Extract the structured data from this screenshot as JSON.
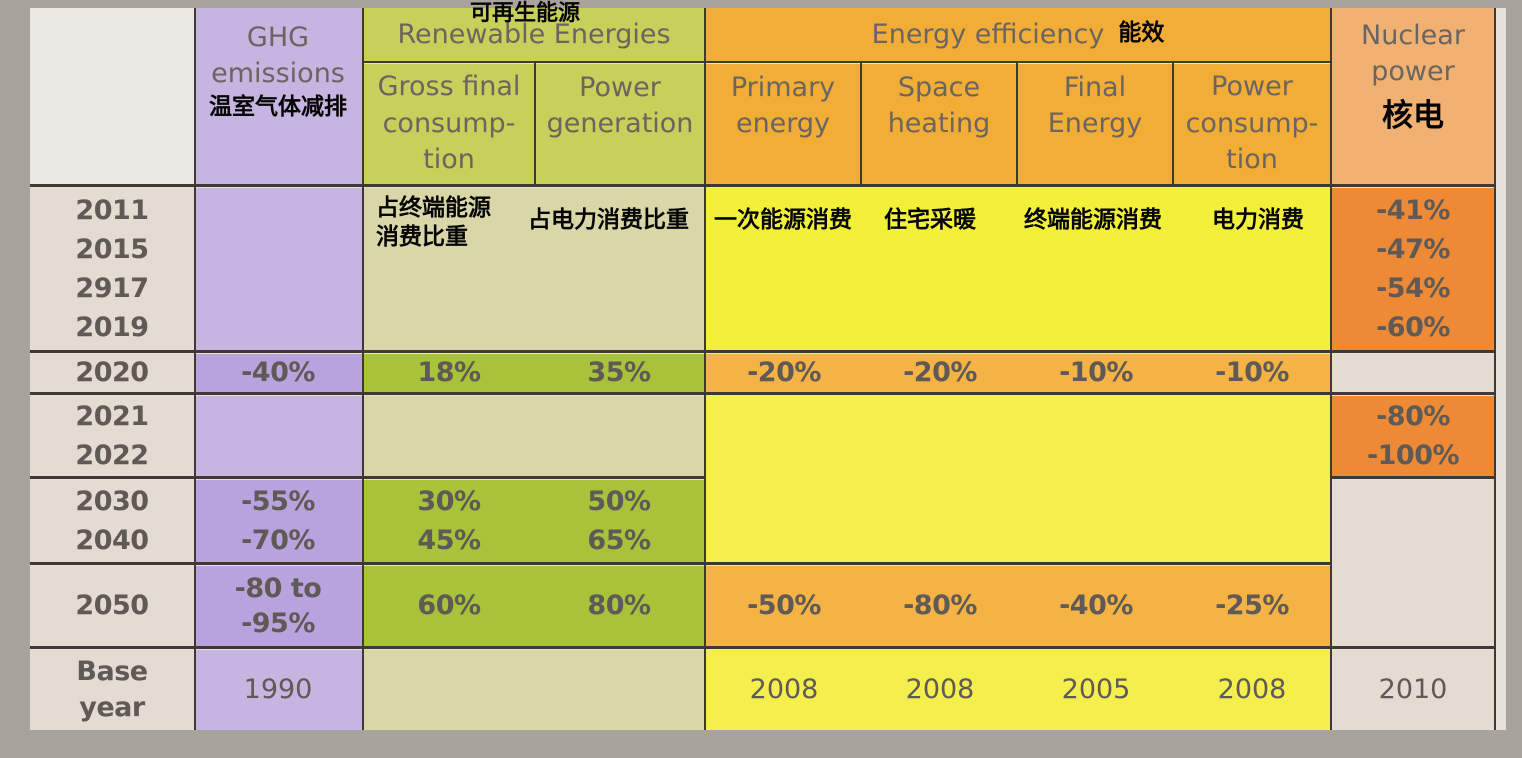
{
  "headers": {
    "ghg": {
      "en": "GHG\nemissions",
      "zh": "温室气体减排"
    },
    "renewables": {
      "en": "Renewable Energies",
      "zh": "可再生能源"
    },
    "gross_final": "Gross final\nconsump-\ntion",
    "power_generation": "Power\ngeneration",
    "efficiency": {
      "en": "Energy efficiency",
      "zh": "能效"
    },
    "primary_energy": "Primary\nenergy",
    "space_heating": "Space\nheating",
    "final_energy": "Final\nEnergy",
    "power_consumption": "Power\nconsump-\ntion",
    "nuclear": {
      "en": "Nuclear\npower",
      "zh": "核电"
    }
  },
  "subheaders_zh": {
    "gross_final": "占终端能源\n消费比重",
    "power_generation": "占电力消费比重",
    "primary_energy": "一次能源消费",
    "space_heating": "住宅采暖",
    "final_energy": "终端能源消费",
    "power_consumption": "电力消费"
  },
  "rows": {
    "group_2011": {
      "years": "2011\n2015\n2917\n2019",
      "nuclear": "-41%\n-47%\n-54%\n-60%"
    },
    "row_2020": {
      "year": "2020",
      "ghg": "-40%",
      "gross_final": "18%",
      "power_generation": "35%",
      "primary_energy": "-20%",
      "space_heating": "-20%",
      "final_energy": "-10%",
      "power_consumption": "-10%"
    },
    "group_2021": {
      "years": "2021\n2022",
      "nuclear": "-80%\n-100%"
    },
    "group_2030": {
      "years": "2030\n2040",
      "ghg": "-55%\n-70%",
      "gross_final": "30%\n45%",
      "power_generation": "50%\n65%"
    },
    "row_2050": {
      "year": "2050",
      "ghg": "-80 to\n-95%",
      "gross_final": "60%",
      "power_generation": "80%",
      "primary_energy": "-50%",
      "space_heating": "-80%",
      "final_energy": "-40%",
      "power_consumption": "-25%"
    },
    "base_year": {
      "label": "Base\nyear",
      "ghg": "1990",
      "primary_energy": "2008",
      "space_heating": "2008",
      "final_energy": "2005",
      "power_consumption": "2008",
      "nuclear": "2010"
    }
  }
}
